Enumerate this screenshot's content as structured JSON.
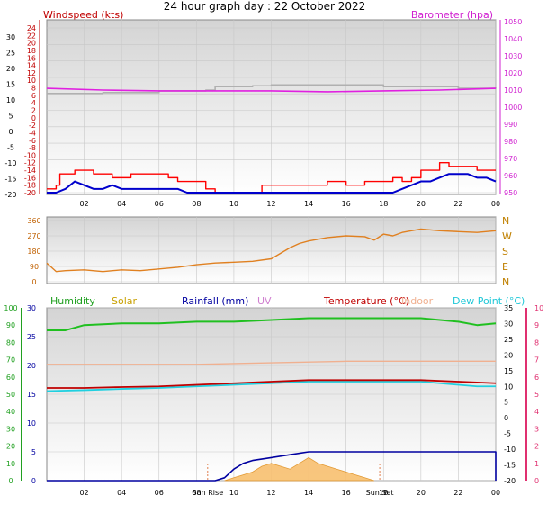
{
  "title": "24 hour graph day : 22 October 2022",
  "colors": {
    "windspeed": "#ff0000",
    "windavg": "#0000cc",
    "barometer": "#e020e0",
    "baro_aux": "#b0b0b0",
    "winddir": "#e08020",
    "humidity": "#20c020",
    "solar": "#c8a000",
    "rainfall": "#0000a0",
    "uv": "#d080d0",
    "temperature": "#c00000",
    "indoor": "#f0b090",
    "dewpoint": "#20d0e0",
    "hum_axis": "#20a020",
    "temp_axis": "#e03070",
    "gridline": "#c8c8c8",
    "panel_top": "#dcdcdc",
    "panel_bottom": "#ffffff"
  },
  "legend": {
    "windspeed": "Windspeed (kts)",
    "barometer": "Barometer (hpa)",
    "humidity": "Humidity",
    "solar": "Solar",
    "rainfall": "Rainfall (mm)",
    "uv": "UV",
    "temperature": "Temperature (°C)",
    "indoor": "Indoor",
    "dewpoint": "Dew Point (°C)"
  },
  "x_ticks": [
    "02",
    "04",
    "06",
    "08",
    "10",
    "12",
    "14",
    "16",
    "18",
    "20",
    "22",
    "00"
  ],
  "sunrise_label": "Sun Rise",
  "sunset_label": "Sun Set",
  "chart_data": [
    {
      "type": "line",
      "title": "",
      "x_range_hours": [
        0,
        24
      ],
      "y_left_ticks": [
        "24",
        "22",
        "20",
        "18",
        "16",
        "14",
        "12",
        "10",
        "8",
        "6",
        "4",
        "2",
        "0",
        "-2",
        "-4",
        "-6",
        "-8",
        "-10",
        "-12",
        "-14",
        "-16",
        "-18",
        "-20"
      ],
      "y_left_range": [
        -20,
        25
      ],
      "y_outer_ticks": [
        "30",
        "25",
        "20",
        "15",
        "10",
        "5",
        "0",
        "-5",
        "-10",
        "-15",
        "-20"
      ],
      "y_right_ticks": [
        "1050",
        "1040",
        "1030",
        "1020",
        "1010",
        "1000",
        "990",
        "980",
        "970",
        "960",
        "950"
      ],
      "y_right_range": [
        950,
        1050
      ],
      "series": [
        {
          "name": "Windspeed (kts)",
          "axis": "left",
          "style": "step",
          "x": [
            0,
            0.5,
            0.7,
            1.5,
            2.5,
            3,
            3.5,
            4,
            4.5,
            5,
            5.5,
            6,
            6.5,
            7,
            7.5,
            8,
            8.5,
            9,
            10,
            11,
            11.5,
            12,
            13,
            14,
            14.5,
            15,
            16,
            17,
            18,
            18.5,
            19,
            19.5,
            20,
            20.5,
            21,
            21.5,
            22,
            22.5,
            23,
            23.5,
            24
          ],
          "y": [
            -19,
            -18,
            -15,
            -14,
            -15,
            -15,
            -16,
            -16,
            -15,
            -15,
            -15,
            -15,
            -16,
            -17,
            -17,
            -17,
            -19,
            -20,
            -20,
            -20,
            -18,
            -18,
            -18,
            -18,
            -18,
            -17,
            -18,
            -17,
            -17,
            -16,
            -17,
            -16,
            -14,
            -14,
            -12,
            -13,
            -13,
            -13,
            -14,
            -14,
            -14
          ]
        },
        {
          "name": "Wind average",
          "axis": "left",
          "style": "line",
          "x": [
            0,
            0.5,
            1,
            1.5,
            2,
            2.5,
            3,
            3.5,
            4,
            4.5,
            5,
            5.5,
            6,
            6.5,
            7,
            7.5,
            8,
            8.5,
            9,
            10,
            11,
            12,
            13,
            14,
            15,
            16,
            17,
            18,
            18.5,
            19,
            19.5,
            20,
            20.5,
            21,
            21.5,
            22,
            22.5,
            23,
            23.5,
            24
          ],
          "y": [
            -20,
            -20,
            -19,
            -17,
            -18,
            -19,
            -19,
            -18,
            -19,
            -19,
            -19,
            -19,
            -19,
            -19,
            -19,
            -20,
            -20,
            -20,
            -20,
            -20,
            -20,
            -20,
            -20,
            -20,
            -20,
            -20,
            -20,
            -20,
            -20,
            -19,
            -18,
            -17,
            -17,
            -16,
            -15,
            -15,
            -15,
            -16,
            -16,
            -17
          ]
        },
        {
          "name": "Barometer (hpa)",
          "axis": "right",
          "style": "line",
          "x": [
            0,
            3,
            6,
            9,
            12,
            15,
            18,
            21,
            24
          ],
          "y": [
            1011,
            1010,
            1009.5,
            1009.5,
            1009.5,
            1009,
            1009.5,
            1010,
            1011
          ]
        },
        {
          "name": "Barometer max",
          "axis": "right",
          "style": "step",
          "x": [
            0,
            3,
            6,
            8.5,
            9,
            11,
            12,
            14,
            18,
            22,
            23,
            24
          ],
          "y": [
            1008,
            1008.5,
            1009.5,
            1010,
            1012,
            1012.5,
            1013,
            1013,
            1012,
            1011,
            1011,
            1011.5
          ]
        }
      ]
    },
    {
      "type": "line",
      "title": "",
      "x_range_hours": [
        0,
        24
      ],
      "y_left_ticks": [
        "360",
        "270",
        "180",
        "90",
        "0"
      ],
      "y_range": [
        0,
        360
      ],
      "y_right_ticks": [
        "N",
        "W",
        "S",
        "E",
        "N"
      ],
      "series": [
        {
          "name": "Wind direction",
          "style": "line",
          "x": [
            0,
            0.5,
            1,
            2,
            3,
            4,
            5,
            6,
            7,
            8,
            9,
            10,
            11,
            12,
            13,
            13.5,
            14,
            14.5,
            15,
            16,
            17,
            17.5,
            18,
            18.5,
            19,
            20,
            21,
            22,
            23,
            24
          ],
          "y": [
            110,
            60,
            65,
            70,
            60,
            70,
            65,
            75,
            85,
            100,
            110,
            115,
            120,
            135,
            200,
            225,
            240,
            250,
            260,
            270,
            265,
            245,
            280,
            270,
            290,
            310,
            300,
            295,
            290,
            300
          ]
        }
      ]
    },
    {
      "type": "line",
      "title": "",
      "x_range_hours": [
        0,
        24
      ],
      "y_outer_ticks": [
        "100",
        "90",
        "80",
        "70",
        "60",
        "50",
        "40",
        "30",
        "20",
        "10",
        "0"
      ],
      "y_left_ticks": [
        "30",
        "25",
        "20",
        "15",
        "10",
        "5",
        "0"
      ],
      "y_right_ticks": [
        "35",
        "30",
        "25",
        "20",
        "15",
        "10",
        "5",
        "0",
        "-5",
        "-10",
        "-15",
        "-20"
      ],
      "y_right_outer_ticks": [
        "10",
        "9",
        "8",
        "7",
        "6",
        "5",
        "4",
        "3",
        "2",
        "1",
        "0"
      ],
      "temperature_range": [
        -20,
        35
      ],
      "rain_range": [
        0,
        30
      ],
      "series": [
        {
          "name": "Humidity",
          "axis": "humidity",
          "x": [
            0,
            1,
            2,
            4,
            6,
            8,
            10,
            12,
            14,
            16,
            18,
            20,
            22,
            23,
            24
          ],
          "y": [
            87,
            87,
            90,
            91,
            91,
            92,
            92,
            93,
            94,
            94,
            94,
            94,
            92,
            90,
            91
          ]
        },
        {
          "name": "Temperature (°C)",
          "axis": "temperature",
          "x": [
            0,
            2,
            4,
            6,
            8,
            10,
            12,
            14,
            16,
            18,
            20,
            22,
            24
          ],
          "y": [
            9.5,
            9.5,
            9.8,
            10,
            10.5,
            11,
            11.5,
            12,
            12,
            12,
            12,
            11.5,
            11
          ]
        },
        {
          "name": "Indoor",
          "axis": "temperature",
          "x": [
            0,
            4,
            8,
            12,
            16,
            20,
            24
          ],
          "y": [
            17,
            17,
            17,
            17.5,
            18,
            18,
            18
          ]
        },
        {
          "name": "Dew Point (°C)",
          "axis": "temperature",
          "x": [
            0,
            2,
            4,
            6,
            8,
            10,
            12,
            14,
            16,
            18,
            20,
            22,
            23,
            24
          ],
          "y": [
            8.5,
            8.8,
            9.2,
            9.5,
            10,
            10.5,
            11,
            11.5,
            11.5,
            11.5,
            11.5,
            10.5,
            10,
            10
          ]
        },
        {
          "name": "Rainfall (mm)",
          "axis": "rain",
          "x": [
            0,
            9,
            9.5,
            10,
            10.5,
            11,
            12,
            13,
            14,
            20,
            24,
            24
          ],
          "y": [
            0,
            0,
            0.5,
            2,
            3,
            3.5,
            4,
            4.5,
            5,
            5,
            5,
            0
          ]
        },
        {
          "name": "Solar",
          "axis": "rain",
          "style": "area",
          "x": [
            9.5,
            10,
            10.5,
            11,
            11.5,
            12,
            12.5,
            13,
            13.5,
            14,
            14.5,
            15,
            15.5,
            16,
            16.5,
            17,
            17.5
          ],
          "y": [
            0,
            0.5,
            1,
            1.5,
            2.5,
            3,
            2.5,
            2,
            3,
            4,
            3,
            2.5,
            2,
            1.5,
            1,
            0.5,
            0
          ]
        }
      ],
      "sunrise_hour": 8.6,
      "sunset_hour": 17.8
    }
  ]
}
